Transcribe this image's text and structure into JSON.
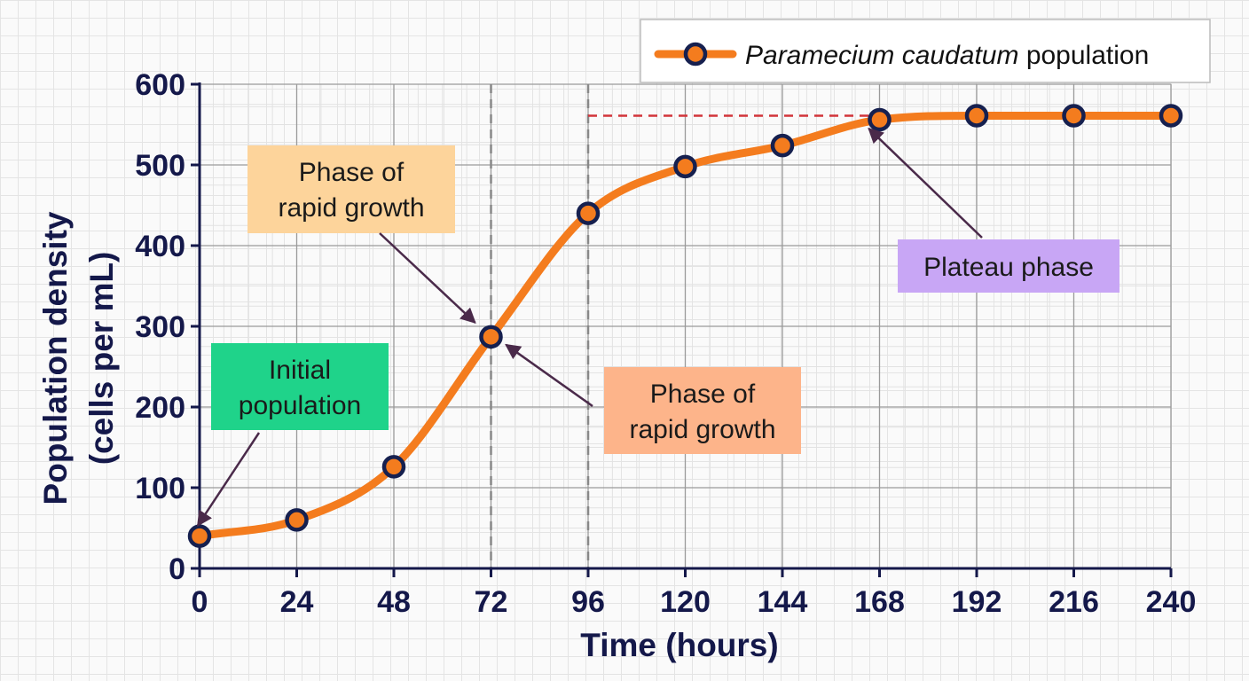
{
  "chart_data": {
    "type": "line",
    "xlabel": "Time (hours)",
    "ylabel": [
      "Population density",
      "(cells per mL)"
    ],
    "xlim": [
      0,
      240
    ],
    "ylim": [
      0,
      600
    ],
    "x_ticks": [
      0,
      24,
      48,
      72,
      96,
      120,
      144,
      168,
      192,
      216,
      240
    ],
    "y_ticks": [
      0,
      100,
      200,
      300,
      400,
      500,
      600
    ],
    "grid": true,
    "legend_position": "top-right",
    "series": [
      {
        "name_italic": "Paramecium caudatum",
        "name_suffix": "population",
        "color": "#f47c1e",
        "marker_fill": "#f47c1e",
        "marker_edge": "#16204f",
        "x": [
          0,
          24,
          48,
          72,
          96,
          120,
          144,
          168,
          192,
          216,
          240
        ],
        "y": [
          40,
          60,
          126,
          287,
          440,
          498,
          524,
          556,
          561,
          561,
          561
        ]
      }
    ],
    "reference_lines": {
      "vertical_x": [
        72,
        96
      ],
      "vertical_color": "#888888",
      "plateau_y": 561,
      "plateau_from_x": 96,
      "plateau_to_x": 168,
      "plateau_color": "#d1343a"
    },
    "annotations": [
      {
        "lines": [
          "Initial",
          "population"
        ],
        "color": "#1fd38a",
        "target": [
          0,
          40
        ]
      },
      {
        "lines": [
          "Phase of",
          "rapid growth"
        ],
        "color": "#fdd49b",
        "target": [
          72,
          287
        ]
      },
      {
        "lines": [
          "Phase of",
          "rapid growth"
        ],
        "color": "#fdb48a",
        "target": [
          72,
          287
        ]
      },
      {
        "lines": [
          "Plateau phase"
        ],
        "color": "#c8a6f5",
        "target": [
          168,
          556
        ]
      }
    ],
    "arrow_color": "#4a2a4a"
  }
}
